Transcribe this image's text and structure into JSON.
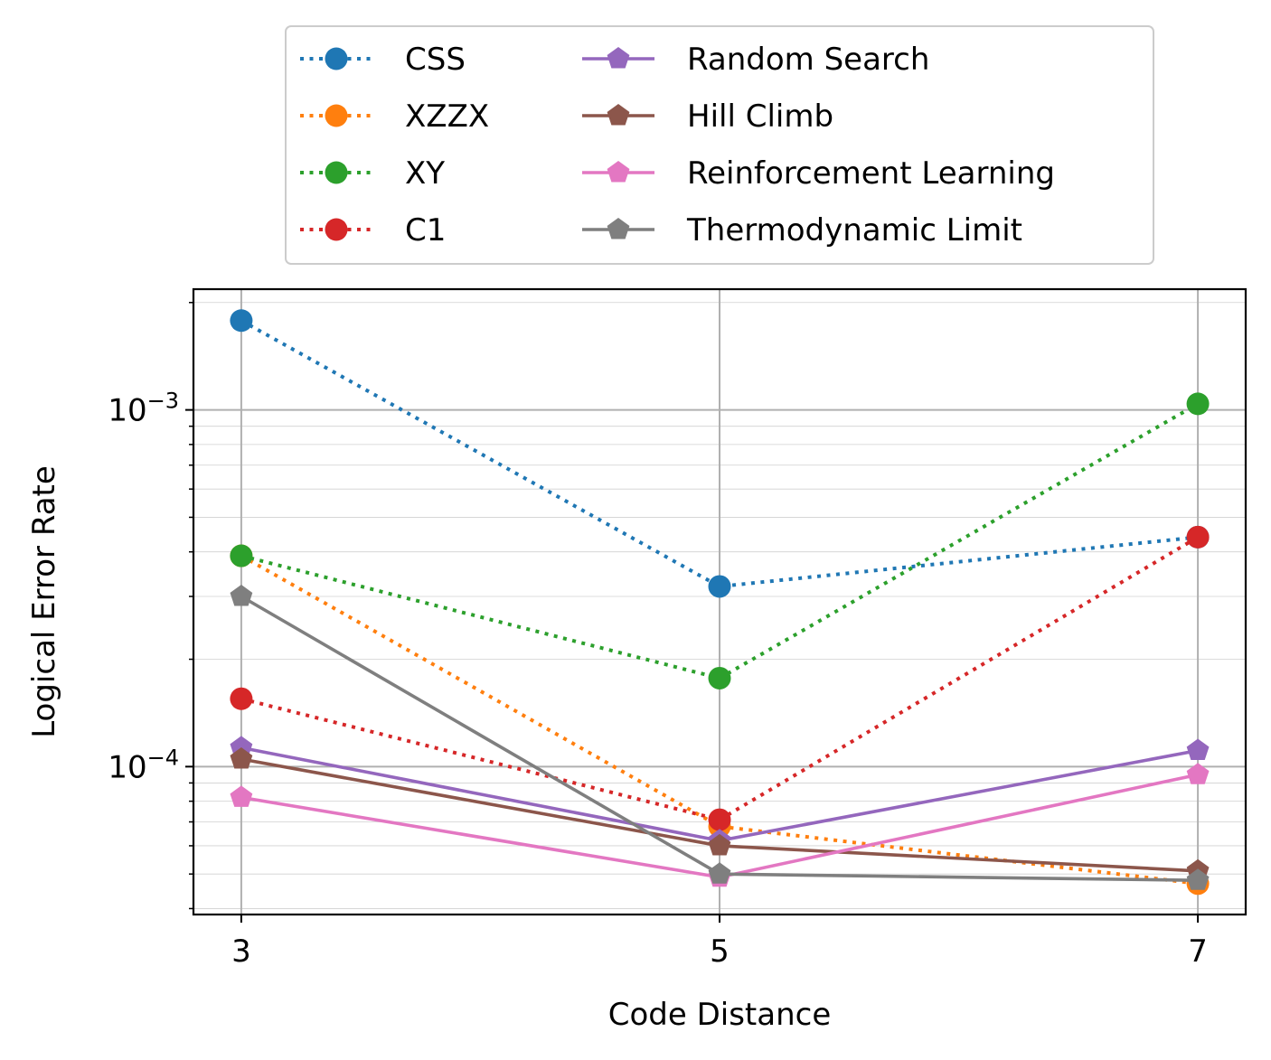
{
  "chart_data": {
    "type": "line",
    "xlabel": "Code Distance",
    "ylabel": "Logical Error Rate",
    "yscale": "log",
    "x": [
      3,
      5,
      7
    ],
    "x_ticks": [
      "3",
      "5",
      "7"
    ],
    "y_ticks": [
      {
        "value": 0.001,
        "base": "10",
        "exp": "−3"
      },
      {
        "value": 0.0001,
        "base": "10",
        "exp": "−4"
      }
    ],
    "xlim": [
      2.8,
      7.2
    ],
    "ylim": [
      3.85e-05,
      0.00218
    ],
    "grid": true,
    "legend": {
      "placement": "top-center, above plot",
      "columns": 2
    },
    "series": [
      {
        "name": "CSS",
        "color": "#1f77b4",
        "linestyle": "dotted",
        "marker": "circle",
        "values": [
          0.00178,
          0.00032,
          0.00044
        ]
      },
      {
        "name": "XZZX",
        "color": "#ff7f0e",
        "linestyle": "dotted",
        "marker": "circle",
        "values": [
          0.00039,
          6.8e-05,
          4.7e-05
        ]
      },
      {
        "name": "XY",
        "color": "#2ca02c",
        "linestyle": "dotted",
        "marker": "circle",
        "values": [
          0.00039,
          0.000177,
          0.00104
        ]
      },
      {
        "name": "C1",
        "color": "#d62728",
        "linestyle": "dotted",
        "marker": "circle",
        "values": [
          0.000155,
          7.1e-05,
          0.00044
        ]
      },
      {
        "name": "Random Search",
        "color": "#9467bd",
        "linestyle": "solid",
        "marker": "pentagon",
        "values": [
          0.000113,
          6.2e-05,
          0.000111
        ]
      },
      {
        "name": "Hill Climb",
        "color": "#8c564b",
        "linestyle": "solid",
        "marker": "pentagon",
        "values": [
          0.000105,
          6e-05,
          5.1e-05
        ]
      },
      {
        "name": "Reinforcement Learning",
        "color": "#e377c2",
        "linestyle": "solid",
        "marker": "pentagon",
        "values": [
          8.2e-05,
          4.9e-05,
          9.5e-05
        ]
      },
      {
        "name": "Thermodynamic Limit",
        "color": "#7f7f7f",
        "linestyle": "solid",
        "marker": "pentagon",
        "values": [
          0.0003,
          5e-05,
          4.8e-05
        ]
      }
    ]
  }
}
